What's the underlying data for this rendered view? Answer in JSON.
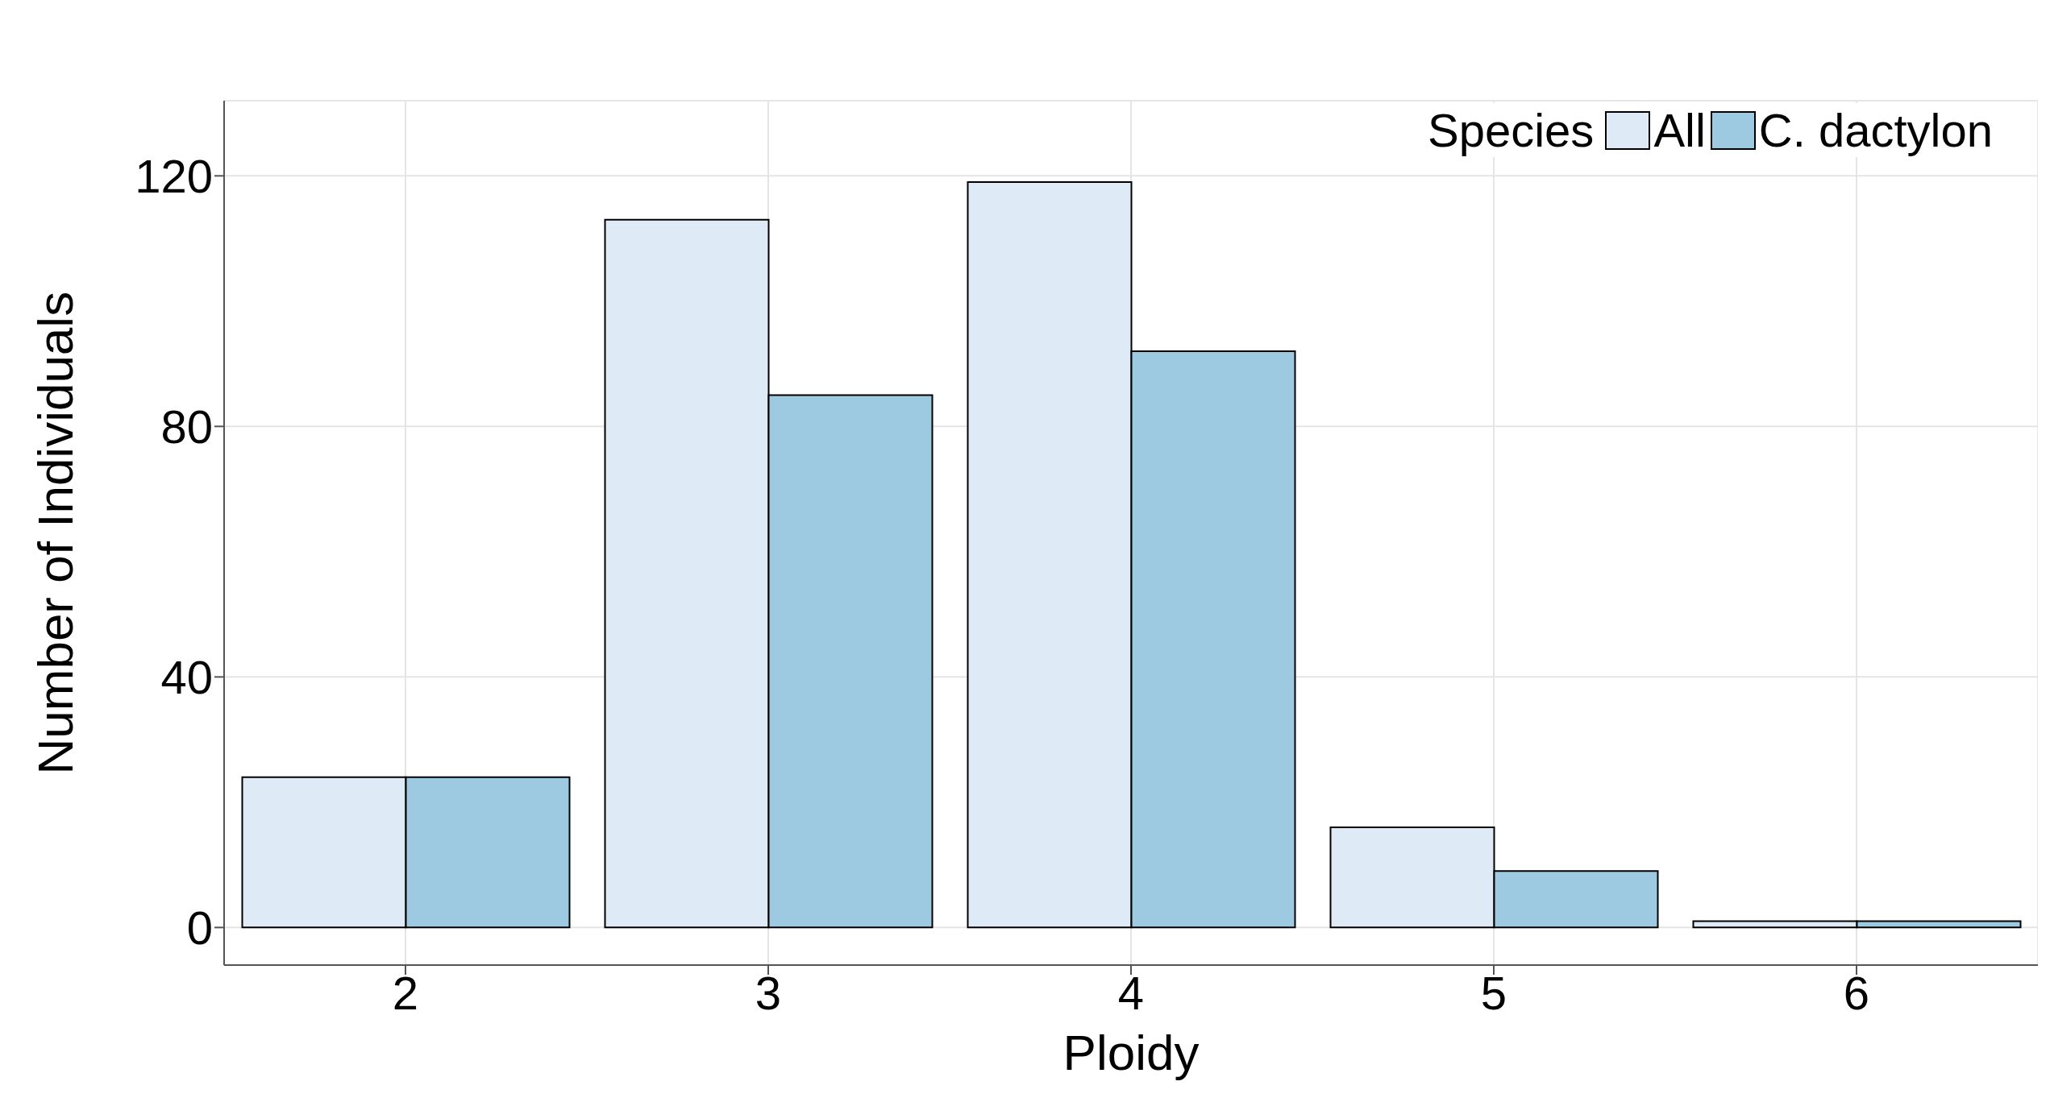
{
  "chart_data": {
    "type": "bar",
    "xlabel": "Ploidy",
    "ylabel": "Number of Individuals",
    "legend_title": "Species",
    "categories": [
      "2",
      "3",
      "4",
      "5",
      "6"
    ],
    "series": [
      {
        "name": "All",
        "color": "#deebf7",
        "values": [
          24,
          113,
          119,
          16,
          1
        ]
      },
      {
        "name": "C. dactylon",
        "color": "#9ecae1",
        "values": [
          24,
          85,
          92,
          9,
          1
        ]
      }
    ],
    "ylim": [
      -6,
      132
    ],
    "yticks": [
      0,
      40,
      80,
      120
    ],
    "grid": true,
    "legend": "top right"
  }
}
